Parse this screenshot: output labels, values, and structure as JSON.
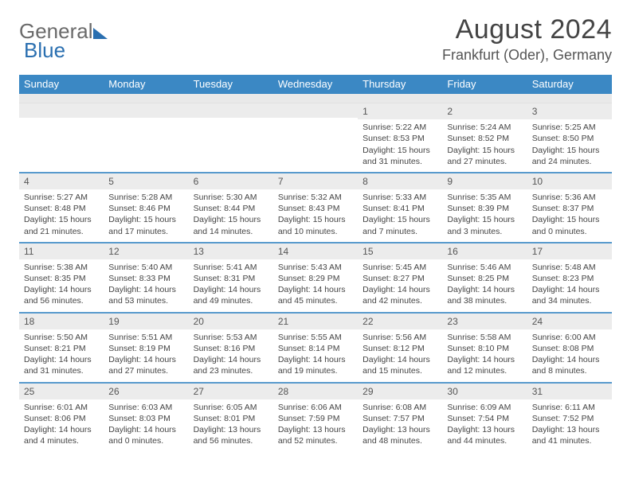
{
  "brand": {
    "general": "General",
    "blue": "Blue"
  },
  "title": "August 2024",
  "subtitle": "Frankfurt (Oder), Germany",
  "colors": {
    "header_bg": "#3b88c4",
    "header_fg": "#ffffff",
    "separator": "#3b88c4",
    "daynum_bg": "#ececec",
    "text": "#444444",
    "title": "#444444",
    "subtitle": "#555555",
    "logo_gray": "#6a6a6a",
    "logo_blue": "#2a6fb0",
    "page_bg": "#ffffff"
  },
  "fonts": {
    "title_size_pt": 26,
    "subtitle_size_pt": 14,
    "weekday_size_pt": 10,
    "daynum_size_pt": 9,
    "body_size_pt": 8
  },
  "weekdays": [
    "Sunday",
    "Monday",
    "Tuesday",
    "Wednesday",
    "Thursday",
    "Friday",
    "Saturday"
  ],
  "weeks": [
    [
      null,
      null,
      null,
      null,
      {
        "n": "1",
        "sr": "Sunrise: 5:22 AM",
        "ss": "Sunset: 8:53 PM",
        "d1": "Daylight: 15 hours",
        "d2": "and 31 minutes."
      },
      {
        "n": "2",
        "sr": "Sunrise: 5:24 AM",
        "ss": "Sunset: 8:52 PM",
        "d1": "Daylight: 15 hours",
        "d2": "and 27 minutes."
      },
      {
        "n": "3",
        "sr": "Sunrise: 5:25 AM",
        "ss": "Sunset: 8:50 PM",
        "d1": "Daylight: 15 hours",
        "d2": "and 24 minutes."
      }
    ],
    [
      {
        "n": "4",
        "sr": "Sunrise: 5:27 AM",
        "ss": "Sunset: 8:48 PM",
        "d1": "Daylight: 15 hours",
        "d2": "and 21 minutes."
      },
      {
        "n": "5",
        "sr": "Sunrise: 5:28 AM",
        "ss": "Sunset: 8:46 PM",
        "d1": "Daylight: 15 hours",
        "d2": "and 17 minutes."
      },
      {
        "n": "6",
        "sr": "Sunrise: 5:30 AM",
        "ss": "Sunset: 8:44 PM",
        "d1": "Daylight: 15 hours",
        "d2": "and 14 minutes."
      },
      {
        "n": "7",
        "sr": "Sunrise: 5:32 AM",
        "ss": "Sunset: 8:43 PM",
        "d1": "Daylight: 15 hours",
        "d2": "and 10 minutes."
      },
      {
        "n": "8",
        "sr": "Sunrise: 5:33 AM",
        "ss": "Sunset: 8:41 PM",
        "d1": "Daylight: 15 hours",
        "d2": "and 7 minutes."
      },
      {
        "n": "9",
        "sr": "Sunrise: 5:35 AM",
        "ss": "Sunset: 8:39 PM",
        "d1": "Daylight: 15 hours",
        "d2": "and 3 minutes."
      },
      {
        "n": "10",
        "sr": "Sunrise: 5:36 AM",
        "ss": "Sunset: 8:37 PM",
        "d1": "Daylight: 15 hours",
        "d2": "and 0 minutes."
      }
    ],
    [
      {
        "n": "11",
        "sr": "Sunrise: 5:38 AM",
        "ss": "Sunset: 8:35 PM",
        "d1": "Daylight: 14 hours",
        "d2": "and 56 minutes."
      },
      {
        "n": "12",
        "sr": "Sunrise: 5:40 AM",
        "ss": "Sunset: 8:33 PM",
        "d1": "Daylight: 14 hours",
        "d2": "and 53 minutes."
      },
      {
        "n": "13",
        "sr": "Sunrise: 5:41 AM",
        "ss": "Sunset: 8:31 PM",
        "d1": "Daylight: 14 hours",
        "d2": "and 49 minutes."
      },
      {
        "n": "14",
        "sr": "Sunrise: 5:43 AM",
        "ss": "Sunset: 8:29 PM",
        "d1": "Daylight: 14 hours",
        "d2": "and 45 minutes."
      },
      {
        "n": "15",
        "sr": "Sunrise: 5:45 AM",
        "ss": "Sunset: 8:27 PM",
        "d1": "Daylight: 14 hours",
        "d2": "and 42 minutes."
      },
      {
        "n": "16",
        "sr": "Sunrise: 5:46 AM",
        "ss": "Sunset: 8:25 PM",
        "d1": "Daylight: 14 hours",
        "d2": "and 38 minutes."
      },
      {
        "n": "17",
        "sr": "Sunrise: 5:48 AM",
        "ss": "Sunset: 8:23 PM",
        "d1": "Daylight: 14 hours",
        "d2": "and 34 minutes."
      }
    ],
    [
      {
        "n": "18",
        "sr": "Sunrise: 5:50 AM",
        "ss": "Sunset: 8:21 PM",
        "d1": "Daylight: 14 hours",
        "d2": "and 31 minutes."
      },
      {
        "n": "19",
        "sr": "Sunrise: 5:51 AM",
        "ss": "Sunset: 8:19 PM",
        "d1": "Daylight: 14 hours",
        "d2": "and 27 minutes."
      },
      {
        "n": "20",
        "sr": "Sunrise: 5:53 AM",
        "ss": "Sunset: 8:16 PM",
        "d1": "Daylight: 14 hours",
        "d2": "and 23 minutes."
      },
      {
        "n": "21",
        "sr": "Sunrise: 5:55 AM",
        "ss": "Sunset: 8:14 PM",
        "d1": "Daylight: 14 hours",
        "d2": "and 19 minutes."
      },
      {
        "n": "22",
        "sr": "Sunrise: 5:56 AM",
        "ss": "Sunset: 8:12 PM",
        "d1": "Daylight: 14 hours",
        "d2": "and 15 minutes."
      },
      {
        "n": "23",
        "sr": "Sunrise: 5:58 AM",
        "ss": "Sunset: 8:10 PM",
        "d1": "Daylight: 14 hours",
        "d2": "and 12 minutes."
      },
      {
        "n": "24",
        "sr": "Sunrise: 6:00 AM",
        "ss": "Sunset: 8:08 PM",
        "d1": "Daylight: 14 hours",
        "d2": "and 8 minutes."
      }
    ],
    [
      {
        "n": "25",
        "sr": "Sunrise: 6:01 AM",
        "ss": "Sunset: 8:06 PM",
        "d1": "Daylight: 14 hours",
        "d2": "and 4 minutes."
      },
      {
        "n": "26",
        "sr": "Sunrise: 6:03 AM",
        "ss": "Sunset: 8:03 PM",
        "d1": "Daylight: 14 hours",
        "d2": "and 0 minutes."
      },
      {
        "n": "27",
        "sr": "Sunrise: 6:05 AM",
        "ss": "Sunset: 8:01 PM",
        "d1": "Daylight: 13 hours",
        "d2": "and 56 minutes."
      },
      {
        "n": "28",
        "sr": "Sunrise: 6:06 AM",
        "ss": "Sunset: 7:59 PM",
        "d1": "Daylight: 13 hours",
        "d2": "and 52 minutes."
      },
      {
        "n": "29",
        "sr": "Sunrise: 6:08 AM",
        "ss": "Sunset: 7:57 PM",
        "d1": "Daylight: 13 hours",
        "d2": "and 48 minutes."
      },
      {
        "n": "30",
        "sr": "Sunrise: 6:09 AM",
        "ss": "Sunset: 7:54 PM",
        "d1": "Daylight: 13 hours",
        "d2": "and 44 minutes."
      },
      {
        "n": "31",
        "sr": "Sunrise: 6:11 AM",
        "ss": "Sunset: 7:52 PM",
        "d1": "Daylight: 13 hours",
        "d2": "and 41 minutes."
      }
    ]
  ]
}
